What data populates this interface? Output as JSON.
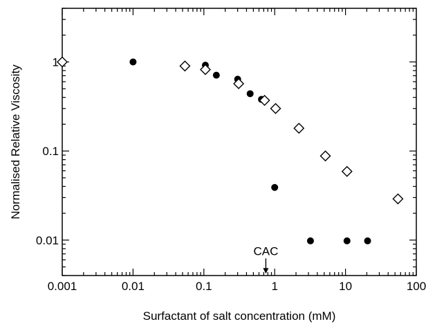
{
  "chart_data": {
    "type": "scatter",
    "title": "",
    "xlabel": "Surfactant of salt concentration (mM)",
    "ylabel": "Normalised Relative Viscosity",
    "xscale": "log",
    "yscale": "log",
    "xlim": [
      0.001,
      100
    ],
    "ylim": [
      0.004,
      4
    ],
    "x_ticks": [
      {
        "value": 0.001,
        "label": "0.001"
      },
      {
        "value": 0.01,
        "label": "0.01"
      },
      {
        "value": 0.1,
        "label": "0.1"
      },
      {
        "value": 1,
        "label": "1"
      },
      {
        "value": 10,
        "label": "10"
      },
      {
        "value": 100,
        "label": "100"
      }
    ],
    "y_ticks": [
      {
        "value": 0.01,
        "label": "0.01"
      },
      {
        "value": 0.1,
        "label": "0.1"
      },
      {
        "value": 1,
        "label": "1"
      }
    ],
    "grid": false,
    "legend": "none",
    "series": [
      {
        "marker": "filled-circle",
        "color": "#000000",
        "points": [
          {
            "x": 0.01,
            "y": 1.0
          },
          {
            "x": 0.105,
            "y": 0.92
          },
          {
            "x": 0.15,
            "y": 0.71
          },
          {
            "x": 0.3,
            "y": 0.64
          },
          {
            "x": 0.45,
            "y": 0.44
          },
          {
            "x": 0.65,
            "y": 0.38
          },
          {
            "x": 1.0,
            "y": 0.039
          },
          {
            "x": 3.2,
            "y": 0.0098
          },
          {
            "x": 10.5,
            "y": 0.0098
          },
          {
            "x": 20.5,
            "y": 0.0098
          }
        ]
      },
      {
        "marker": "open-diamond",
        "color": "#000000",
        "points": [
          {
            "x": 0.001,
            "y": 1.0
          },
          {
            "x": 0.054,
            "y": 0.9
          },
          {
            "x": 0.105,
            "y": 0.82
          },
          {
            "x": 0.31,
            "y": 0.57
          },
          {
            "x": 0.72,
            "y": 0.37
          },
          {
            "x": 1.03,
            "y": 0.3
          },
          {
            "x": 2.2,
            "y": 0.18
          },
          {
            "x": 5.2,
            "y": 0.088
          },
          {
            "x": 10.5,
            "y": 0.059
          },
          {
            "x": 55,
            "y": 0.029
          }
        ]
      }
    ],
    "annotations": [
      {
        "text": "CAC",
        "x": 0.75,
        "arrow_to_y": 0.0042
      }
    ]
  }
}
